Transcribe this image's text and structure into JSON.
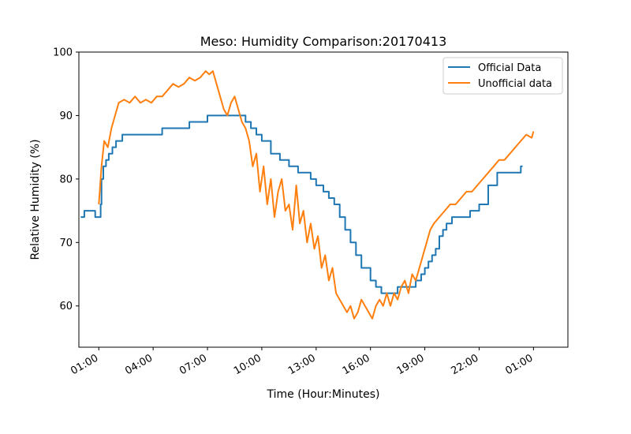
{
  "chart_data": {
    "type": "line",
    "title": "Meso: Humidity Comparison:20170413",
    "xlabel": "Time (Hour:Minutes)",
    "ylabel": "Relative Humidity (%)",
    "x_unit": "hours",
    "xlim": [
      -1.1,
      25.9
    ],
    "ylim": [
      53.5,
      100
    ],
    "xticks": [
      {
        "value": 0,
        "label": "01:00"
      },
      {
        "value": 3,
        "label": "04:00"
      },
      {
        "value": 6,
        "label": "07:00"
      },
      {
        "value": 9,
        "label": "10:00"
      },
      {
        "value": 12,
        "label": "13:00"
      },
      {
        "value": 15,
        "label": "16:00"
      },
      {
        "value": 18,
        "label": "19:00"
      },
      {
        "value": 21,
        "label": "22:00"
      },
      {
        "value": 24,
        "label": "01:00"
      }
    ],
    "yticks": [
      60,
      70,
      80,
      90,
      100
    ],
    "grid": false,
    "legend_position": "top-right",
    "series": [
      {
        "name": "Official Data",
        "color": "#1f77b4",
        "step": true,
        "x": [
          -1.0,
          -0.8,
          -0.2,
          0.1,
          0.15,
          0.25,
          0.4,
          0.55,
          0.75,
          0.95,
          1.1,
          1.3,
          1.5,
          1.7,
          2.0,
          3.0,
          3.5,
          4.0,
          4.5,
          5.0,
          5.3,
          5.6,
          6.0,
          6.5,
          7.0,
          7.6,
          8.1,
          8.4,
          8.7,
          9.0,
          9.5,
          10.0,
          10.5,
          11.0,
          11.4,
          11.7,
          12.0,
          12.4,
          12.7,
          13.0,
          13.3,
          13.6,
          13.9,
          14.2,
          14.5,
          15.0,
          15.3,
          15.6,
          15.9,
          16.2,
          16.5,
          16.8,
          17.0,
          17.2,
          17.5,
          17.8,
          18.0,
          18.2,
          18.4,
          18.6,
          18.8,
          19.0,
          19.2,
          19.5,
          20.0,
          20.5,
          21.0,
          21.2,
          21.5,
          22.0,
          22.5,
          23.0,
          23.3
        ],
        "y": [
          74,
          75,
          74,
          76,
          80,
          82,
          83,
          84,
          85,
          86,
          86,
          87,
          87,
          87,
          87,
          87,
          88,
          88,
          88,
          89,
          89,
          89,
          90,
          90,
          90,
          90,
          89,
          88,
          87,
          86,
          84,
          83,
          82,
          81,
          81,
          80,
          79,
          78,
          77,
          76,
          74,
          72,
          70,
          68,
          66,
          64,
          63,
          62,
          62,
          62,
          63,
          63,
          63,
          63,
          64,
          65,
          66,
          67,
          68,
          69,
          71,
          72,
          73,
          74,
          74,
          75,
          76,
          76,
          79,
          81,
          81,
          81,
          82
        ]
      },
      {
        "name": "Unofficial data",
        "color": "#ff7f0e",
        "step": false,
        "x": [
          0.0,
          0.15,
          0.3,
          0.5,
          0.7,
          0.9,
          1.1,
          1.4,
          1.7,
          2.0,
          2.3,
          2.6,
          2.9,
          3.2,
          3.5,
          3.8,
          4.1,
          4.4,
          4.7,
          5.0,
          5.3,
          5.6,
          5.9,
          6.1,
          6.3,
          6.5,
          6.7,
          6.9,
          7.1,
          7.3,
          7.5,
          7.7,
          7.9,
          8.1,
          8.3,
          8.5,
          8.7,
          8.9,
          9.1,
          9.3,
          9.5,
          9.7,
          9.9,
          10.1,
          10.3,
          10.5,
          10.7,
          10.9,
          11.1,
          11.3,
          11.5,
          11.7,
          11.9,
          12.1,
          12.3,
          12.5,
          12.7,
          12.9,
          13.1,
          13.3,
          13.5,
          13.7,
          13.9,
          14.1,
          14.3,
          14.5,
          14.7,
          14.9,
          15.1,
          15.3,
          15.5,
          15.7,
          15.9,
          16.1,
          16.3,
          16.5,
          16.7,
          16.9,
          17.1,
          17.3,
          17.5,
          17.7,
          17.9,
          18.1,
          18.3,
          18.5,
          18.8,
          19.1,
          19.4,
          19.7,
          20.0,
          20.3,
          20.6,
          20.9,
          21.2,
          21.5,
          21.8,
          22.1,
          22.4,
          22.7,
          23.0,
          23.3,
          23.6,
          23.9,
          24.0
        ],
        "y": [
          76,
          82,
          86,
          85,
          88,
          90,
          92,
          92.5,
          92,
          93,
          92,
          92.5,
          92,
          93,
          93,
          94,
          95,
          94.5,
          95,
          96,
          95.5,
          96,
          97,
          96.5,
          97,
          95,
          93,
          91,
          90,
          92,
          93,
          91,
          89,
          88,
          86,
          82,
          84,
          78,
          82,
          76,
          80,
          74,
          78,
          80,
          75,
          76,
          72,
          79,
          73,
          75,
          70,
          73,
          69,
          71,
          66,
          68,
          64,
          66,
          62,
          61,
          60,
          59,
          60,
          58,
          59,
          61,
          60,
          59,
          58,
          60,
          61,
          60,
          62,
          60,
          62,
          61,
          63,
          64,
          62,
          65,
          64,
          66,
          68,
          70,
          72,
          73,
          74,
          75,
          76,
          76,
          77,
          78,
          78,
          79,
          80,
          81,
          82,
          83,
          83,
          84,
          85,
          86,
          87,
          86.5,
          87.5
        ]
      }
    ]
  }
}
